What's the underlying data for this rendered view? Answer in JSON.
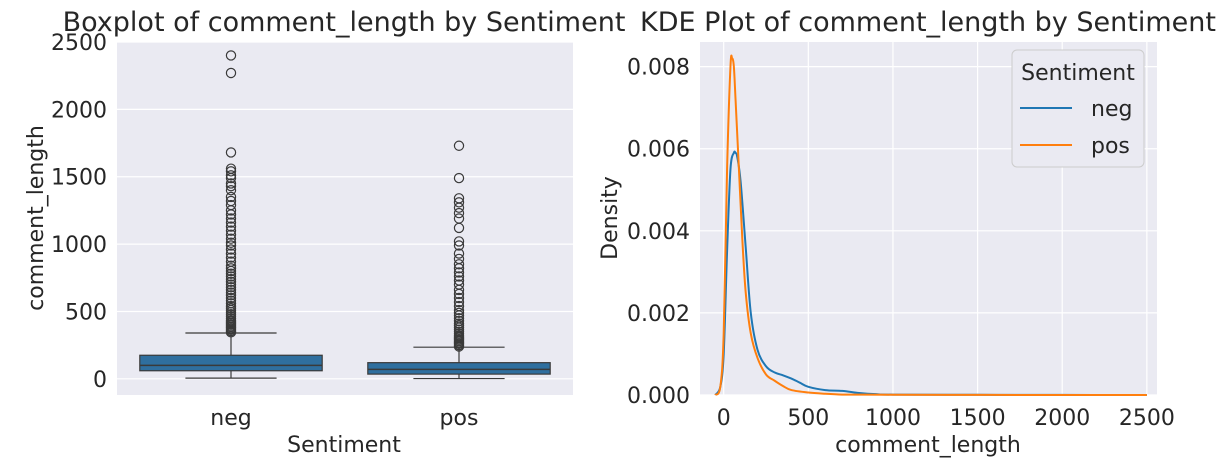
{
  "chart_data": [
    {
      "type": "box",
      "title": "Boxplot of comment_length by Sentiment",
      "xlabel": "Sentiment",
      "ylabel": "comment_length",
      "ylim": [
        -120,
        2500
      ],
      "yticks": [
        0,
        500,
        1000,
        1500,
        2000,
        2500
      ],
      "categories": [
        "neg",
        "pos"
      ],
      "color": "#2f6f9f",
      "grid": true,
      "boxes": [
        {
          "name": "neg",
          "min": 5,
          "q1": 60,
          "median": 100,
          "q3": 175,
          "max": 340,
          "outliers": [
            345,
            355,
            365,
            375,
            385,
            395,
            405,
            415,
            425,
            435,
            450,
            465,
            480,
            495,
            510,
            525,
            540,
            560,
            580,
            600,
            620,
            640,
            660,
            680,
            700,
            720,
            740,
            760,
            780,
            800,
            820,
            840,
            870,
            900,
            930,
            960,
            990,
            1010,
            1040,
            1070,
            1100,
            1130,
            1160,
            1190,
            1220,
            1250,
            1290,
            1320,
            1350,
            1400,
            1430,
            1450,
            1490,
            1510,
            1540,
            1560,
            1680,
            2270,
            2400
          ]
        },
        {
          "name": "pos",
          "min": 2,
          "q1": 35,
          "median": 70,
          "q3": 120,
          "max": 235,
          "outliers": [
            240,
            250,
            260,
            270,
            280,
            290,
            300,
            310,
            320,
            335,
            350,
            365,
            380,
            395,
            410,
            430,
            450,
            470,
            490,
            510,
            540,
            570,
            600,
            630,
            660,
            700,
            730,
            760,
            790,
            820,
            850,
            890,
            930,
            990,
            1020,
            1120,
            1190,
            1230,
            1270,
            1310,
            1340,
            1490,
            1730
          ]
        }
      ]
    },
    {
      "type": "line",
      "title": "KDE Plot of comment_length by Sentiment",
      "xlabel": "comment_length",
      "ylabel": "Density",
      "xlim": [
        -140,
        2560
      ],
      "ylim": [
        0,
        0.0086
      ],
      "xticks": [
        0,
        500,
        1000,
        1500,
        2000,
        2500
      ],
      "yticks": [
        0.0,
        0.002,
        0.004,
        0.006,
        0.008
      ],
      "ytick_labels": [
        "0.000",
        "0.002",
        "0.004",
        "0.006",
        "0.008"
      ],
      "legend": {
        "title": "Sentiment",
        "position": "top-right"
      },
      "grid": true,
      "series": [
        {
          "name": "neg",
          "color": "#1f77b4",
          "x": [
            -50,
            -20,
            0,
            20,
            40,
            60,
            70,
            80,
            100,
            130,
            160,
            200,
            250,
            300,
            350,
            400,
            450,
            500,
            600,
            700,
            800,
            900,
            1000,
            1500,
            2000,
            2500
          ],
          "y": [
            0.0,
            0.0002,
            0.001,
            0.0035,
            0.0055,
            0.0059,
            0.0059,
            0.0058,
            0.0052,
            0.0036,
            0.002,
            0.0011,
            0.0007,
            0.00055,
            0.00048,
            0.0004,
            0.0003,
            0.0002,
            0.00012,
            0.0001,
            5e-05,
            2e-05,
            1e-05,
            5e-06,
            2e-06,
            0.0
          ]
        },
        {
          "name": "pos",
          "color": "#ff7f0e",
          "x": [
            -50,
            -20,
            0,
            20,
            40,
            50,
            60,
            70,
            90,
            110,
            130,
            160,
            200,
            250,
            300,
            350,
            400,
            500,
            600,
            700,
            800,
            1000,
            1500,
            2000,
            2500
          ],
          "y": [
            0.0,
            0.0002,
            0.0015,
            0.0055,
            0.008,
            0.0082,
            0.008,
            0.0072,
            0.0055,
            0.0038,
            0.0025,
            0.0015,
            0.0009,
            0.0005,
            0.00035,
            0.00022,
            0.00012,
            6e-05,
            3e-05,
            1e-05,
            1e-05,
            5e-06,
            2e-06,
            1e-06,
            0.0
          ]
        }
      ]
    }
  ]
}
